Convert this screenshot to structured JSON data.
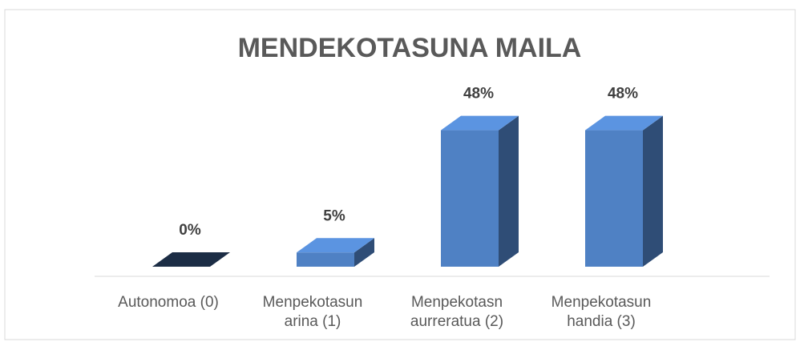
{
  "chart_data": {
    "type": "bar3d",
    "title": "MENDEKOTASUNA MAILA",
    "categories": [
      "Autonomoa (0)",
      "Menpekotasun arina (1)",
      "Menpekotasn aurreratua (2)",
      "Menpekotasun handia (3)"
    ],
    "values": [
      0,
      5,
      48,
      48
    ],
    "value_labels": [
      "0%",
      "5%",
      "48%",
      "48%"
    ],
    "color": "#4f81c4"
  }
}
